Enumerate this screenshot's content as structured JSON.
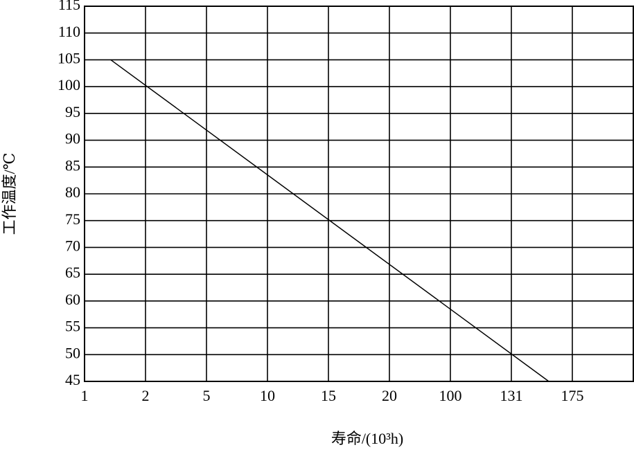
{
  "chart_data": {
    "type": "line",
    "x_label": "寿命/(10³h)",
    "y_label": "工作温度/℃",
    "x": [
      1.43,
      158
    ],
    "series": [
      {
        "color": "#000000",
        "values": [
          105,
          45
        ]
      }
    ],
    "xlim": [
      1,
      212
    ],
    "xticks": [
      1,
      2,
      5,
      10,
      15,
      20,
      100,
      131,
      175
    ],
    "ylim": [
      45,
      115
    ],
    "yticks": [
      45,
      50,
      55,
      60,
      65,
      70,
      75,
      80,
      85,
      90,
      95,
      100,
      105,
      110,
      115
    ],
    "grid": true
  }
}
